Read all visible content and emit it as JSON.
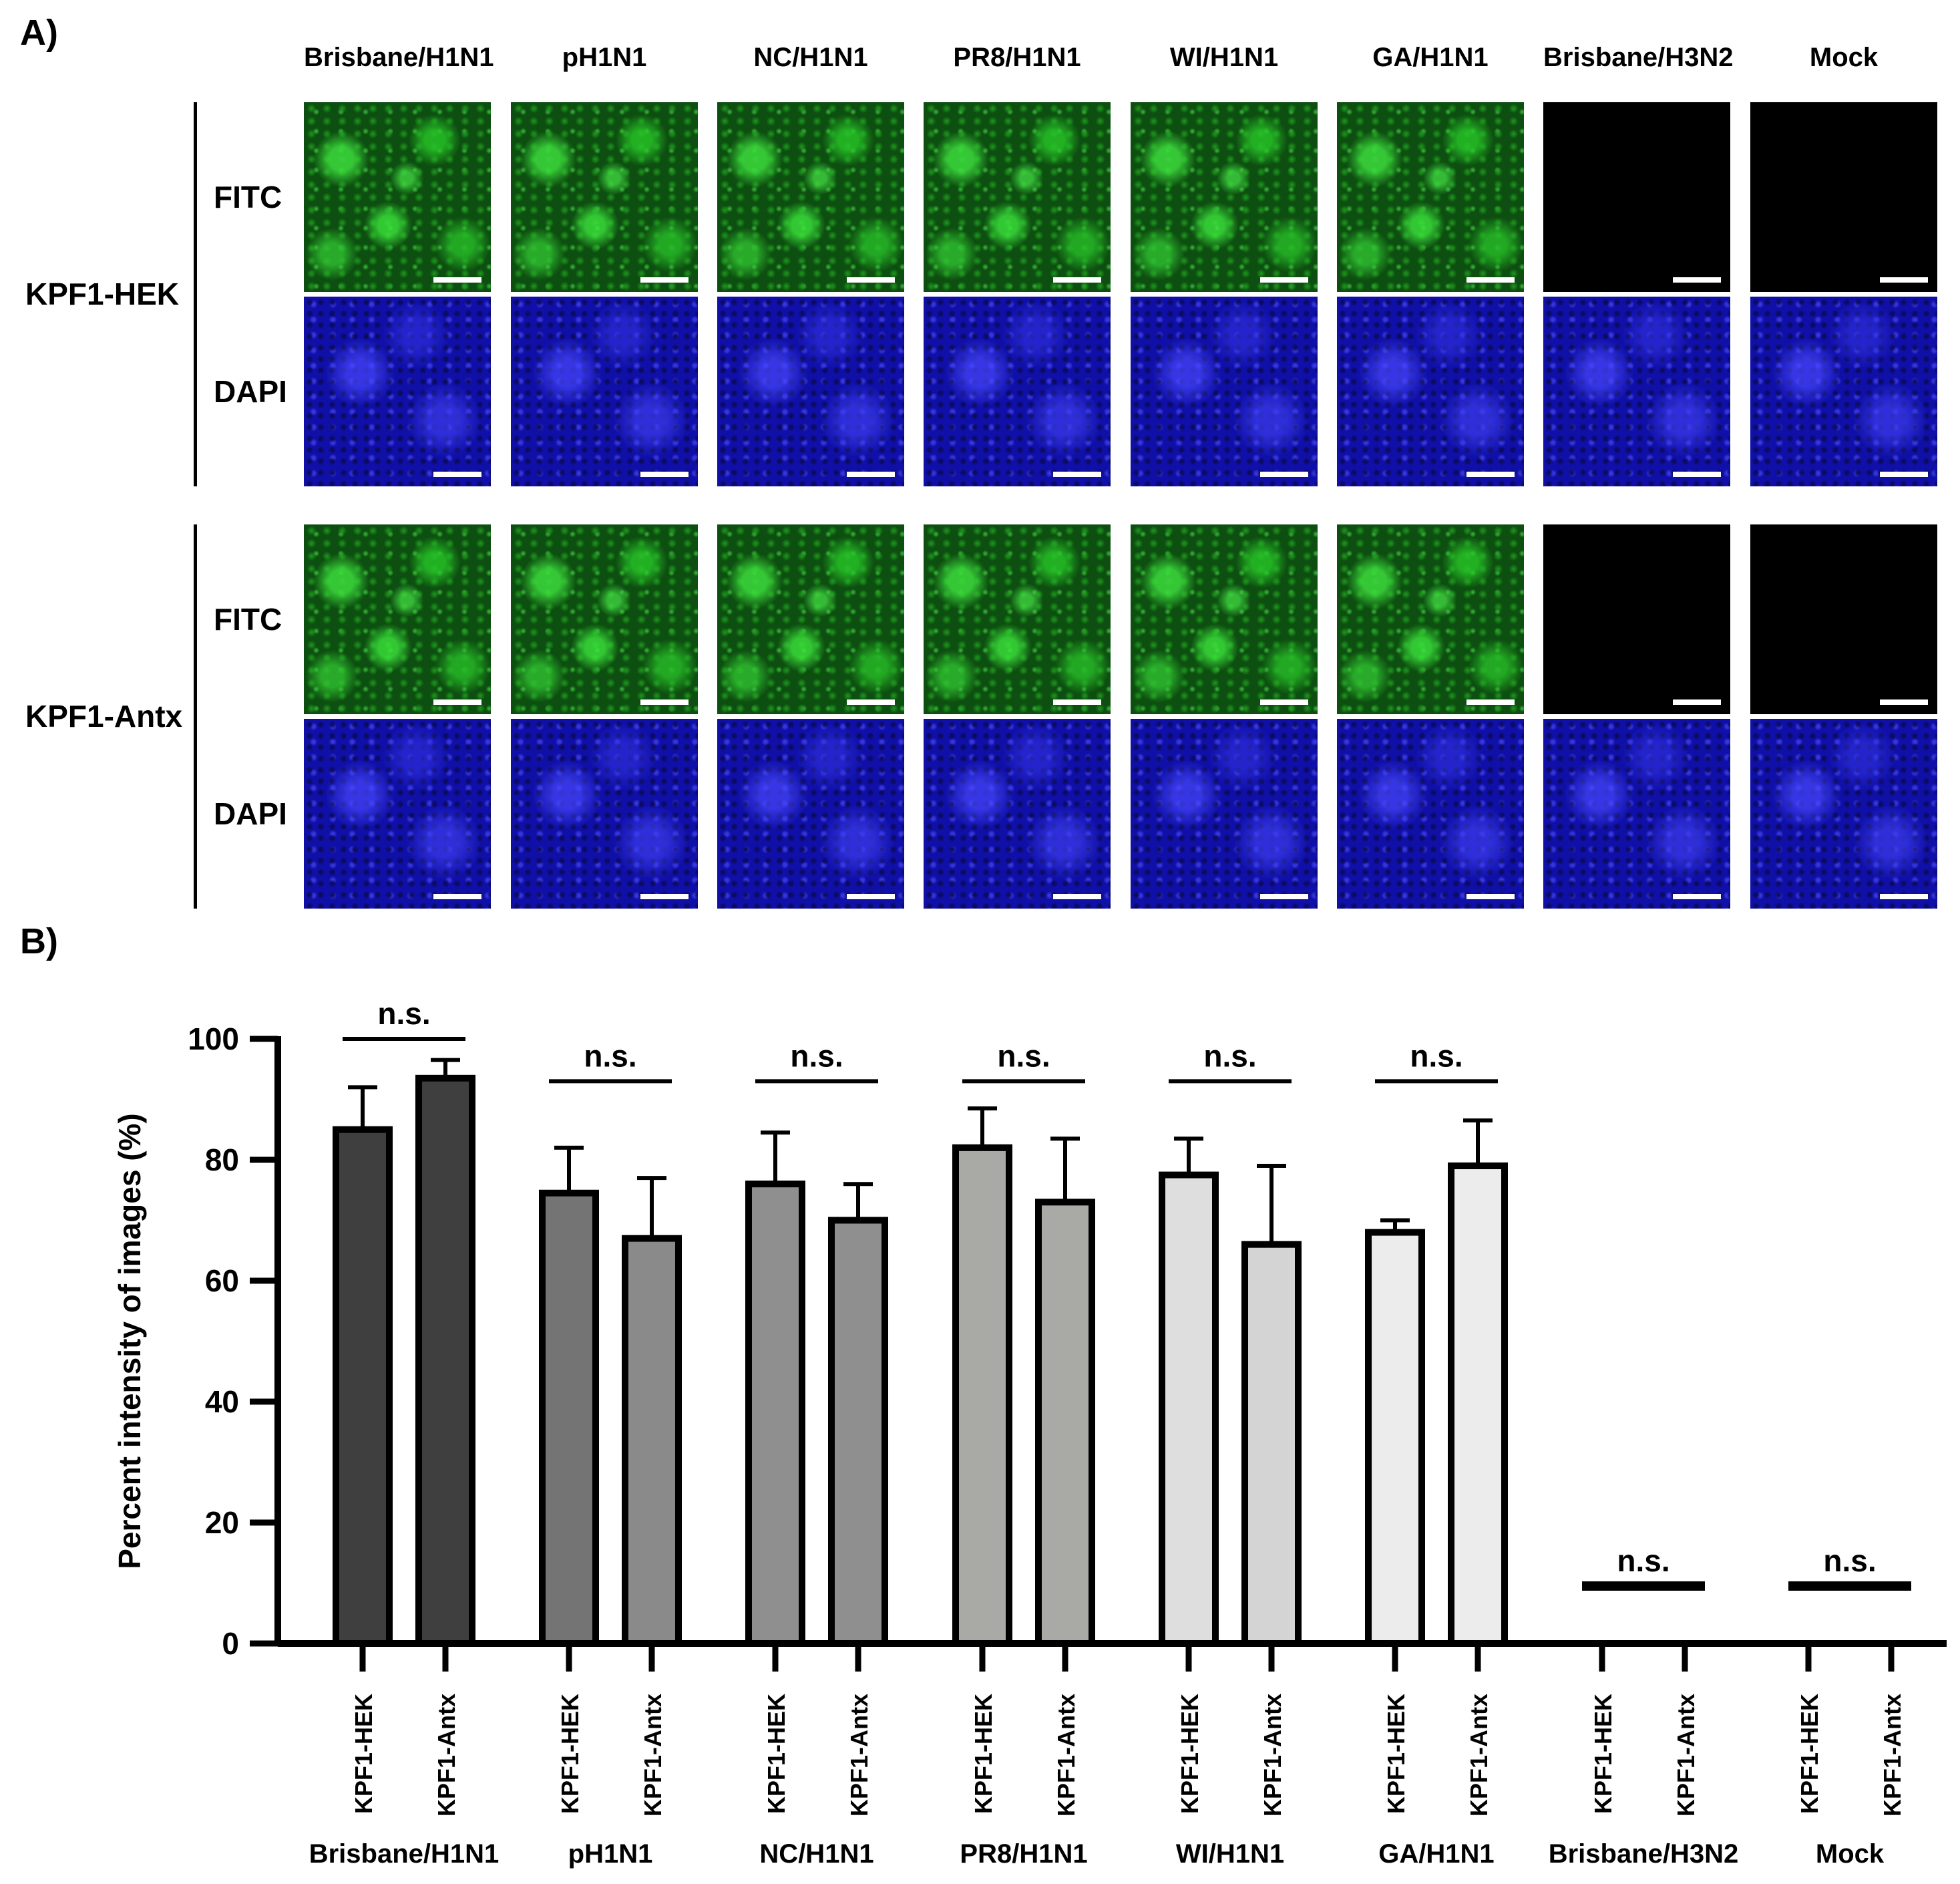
{
  "panel_a": {
    "label": "A)",
    "columns": [
      "Brisbane/H1N1",
      "pH1N1",
      "NC/H1N1",
      "PR8/H1N1",
      "WI/H1N1",
      "GA/H1N1",
      "Brisbane/H3N2",
      "Mock"
    ],
    "groups": [
      {
        "label": "KPF1-HEK",
        "channels": [
          "FITC",
          "DAPI"
        ]
      },
      {
        "label": "KPF1-Antx",
        "channels": [
          "FITC",
          "DAPI"
        ]
      }
    ],
    "fitc_dark_columns": [
      "Brisbane/H3N2",
      "Mock"
    ],
    "colors": {
      "fitc": "#1f8f1f",
      "dapi": "#1414b4",
      "dark": "#000000",
      "scalebar": "#ffffff"
    }
  },
  "panel_b": {
    "label": "B)",
    "chart_data": {
      "type": "bar",
      "ylabel": "Percent intensity of images (%)",
      "ylim": [
        0,
        100
      ],
      "yticks": [
        0,
        20,
        40,
        60,
        80,
        100
      ],
      "groups": [
        "Brisbane/H1N1",
        "pH1N1",
        "NC/H1N1",
        "PR8/H1N1",
        "WI/H1N1",
        "GA/H1N1",
        "Brisbane/H3N2",
        "Mock"
      ],
      "bar_labels": [
        "KPF1-HEK",
        "KPF1-Antx"
      ],
      "series": [
        {
          "name": "KPF1-HEK",
          "values": [
            85,
            74.5,
            76,
            82,
            77.5,
            68,
            0,
            0
          ],
          "errors": [
            7,
            7.5,
            8.5,
            6.5,
            6,
            2,
            0,
            0
          ]
        },
        {
          "name": "KPF1-Antx",
          "values": [
            93.5,
            67,
            70,
            73,
            66,
            79,
            0,
            0
          ],
          "errors": [
            3,
            10,
            6,
            10.5,
            13,
            7.5,
            0,
            0
          ]
        }
      ],
      "significance": [
        "n.s.",
        "n.s.",
        "n.s.",
        "n.s.",
        "n.s.",
        "n.s.",
        "n.s.",
        "n.s."
      ],
      "bar_colors": [
        [
          "#3f3f3f",
          "#3f3f3f"
        ],
        [
          "#747474",
          "#8a8a8a"
        ],
        [
          "#8f8f8f",
          "#8f8f8f"
        ],
        [
          "#a9aaa5",
          "#a9aaa5"
        ],
        [
          "#dedede",
          "#d4d4d4"
        ],
        [
          "#ececec",
          "#ececec"
        ],
        [
          "#ffffff",
          "#ffffff"
        ],
        [
          "#ffffff",
          "#ffffff"
        ]
      ]
    }
  }
}
